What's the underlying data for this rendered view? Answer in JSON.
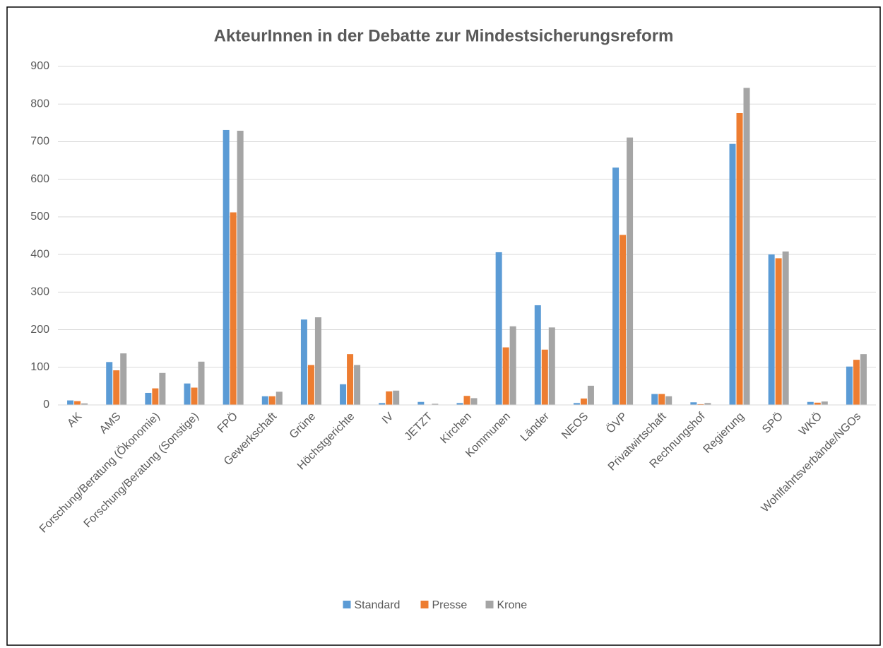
{
  "chart_data": {
    "type": "bar",
    "title": "AkteurInnen in der Debatte zur Mindestsicherungsreform",
    "categories": [
      "AK",
      "AMS",
      "Forschung/Beratung (Ökonomie)",
      "Forschung/Beratung (Sonstige)",
      "FPÖ",
      "Gewerkschaft",
      "Grüne",
      "Höchstgerichte",
      "IV",
      "JETZT",
      "Kirchen",
      "Kommunen",
      "Länder",
      "NEOS",
      "ÖVP",
      "Privatwirtschaft",
      "Rechnungshof",
      "Regierung",
      "SPÖ",
      "WKÖ",
      "Wohlfahrtsverbände/NGOs"
    ],
    "series": [
      {
        "name": "Standard",
        "color": "#5b9bd5",
        "values": [
          12,
          114,
          32,
          57,
          731,
          23,
          227,
          55,
          5,
          8,
          5,
          406,
          265,
          5,
          631,
          29,
          7,
          694,
          400,
          8,
          102
        ]
      },
      {
        "name": "Presse",
        "color": "#ed7d31",
        "values": [
          10,
          92,
          44,
          46,
          512,
          23,
          106,
          135,
          36,
          1,
          24,
          153,
          147,
          17,
          452,
          29,
          2,
          776,
          390,
          6,
          120
        ]
      },
      {
        "name": "Krone",
        "color": "#a5a5a5",
        "values": [
          4,
          137,
          85,
          115,
          729,
          35,
          233,
          106,
          38,
          3,
          18,
          209,
          206,
          51,
          711,
          23,
          5,
          843,
          408,
          9,
          135
        ]
      }
    ],
    "ylim": [
      0,
      900
    ],
    "yticks": [
      0,
      100,
      200,
      300,
      400,
      500,
      600,
      700,
      800,
      900
    ],
    "grid": true,
    "legend": "bottom"
  }
}
